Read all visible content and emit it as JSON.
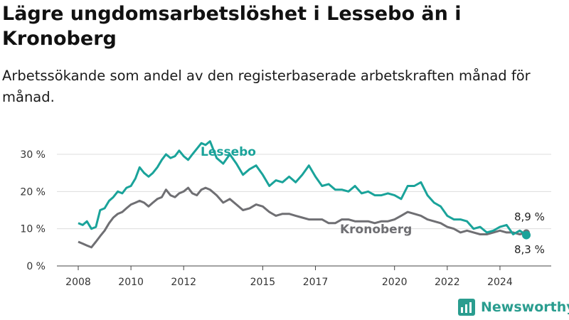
{
  "title": "Lägre ungdomsarbetslöshet i Lessebo än i Kronoberg",
  "subtitle": "Arbetssökande som andel av den registerbaserade arbetskraften månad för månad.",
  "brand": "Newsworthy",
  "colors": {
    "lessebo": "#1aa39a",
    "kronoberg": "#6f6f73",
    "grid": "#dddddd",
    "brand": "#2a9d8f"
  },
  "chart_data": {
    "type": "line",
    "ylim": [
      0,
      30
    ],
    "yticks": [
      0,
      10,
      20,
      30
    ],
    "ytick_labels": [
      "0 %",
      "10 %",
      "20 %",
      "30 %"
    ],
    "xticks": [
      2008,
      2010,
      2012,
      2015,
      2017,
      2020,
      2022,
      2024
    ],
    "xtick_labels": [
      "2008",
      "2010",
      "2012",
      "2015",
      "2017",
      "2020",
      "2022",
      "2024"
    ],
    "end_labels": {
      "lessebo": "8,3 %",
      "kronoberg": "8,9 %"
    },
    "series": [
      {
        "name": "Lessebo",
        "key": "lessebo",
        "x": [
          2008.0,
          2008.17,
          2008.33,
          2008.5,
          2008.67,
          2008.83,
          2009.0,
          2009.17,
          2009.33,
          2009.5,
          2009.67,
          2009.83,
          2010.0,
          2010.17,
          2010.33,
          2010.5,
          2010.67,
          2010.83,
          2011.0,
          2011.17,
          2011.33,
          2011.5,
          2011.67,
          2011.83,
          2012.0,
          2012.17,
          2012.33,
          2012.5,
          2012.67,
          2012.83,
          2013.0,
          2013.25,
          2013.5,
          2013.75,
          2014.0,
          2014.25,
          2014.5,
          2014.75,
          2015.0,
          2015.25,
          2015.5,
          2015.75,
          2016.0,
          2016.25,
          2016.5,
          2016.75,
          2017.0,
          2017.25,
          2017.5,
          2017.75,
          2018.0,
          2018.25,
          2018.5,
          2018.75,
          2019.0,
          2019.25,
          2019.5,
          2019.75,
          2020.0,
          2020.25,
          2020.5,
          2020.75,
          2021.0,
          2021.25,
          2021.5,
          2021.75,
          2022.0,
          2022.25,
          2022.5,
          2022.75,
          2023.0,
          2023.25,
          2023.5,
          2023.75,
          2024.0,
          2024.25,
          2024.5,
          2024.75,
          2025.0
        ],
        "values": [
          11.5,
          11.0,
          12.0,
          10.0,
          10.5,
          15.0,
          15.5,
          17.5,
          18.5,
          20.0,
          19.5,
          21.0,
          21.5,
          23.5,
          26.5,
          25.0,
          24.0,
          25.0,
          26.5,
          28.5,
          30.0,
          29.0,
          29.5,
          31.0,
          29.5,
          28.5,
          30.0,
          31.5,
          33.0,
          32.5,
          33.5,
          29.0,
          27.5,
          30.0,
          27.5,
          24.5,
          26.0,
          27.0,
          24.5,
          21.5,
          23.0,
          22.5,
          24.0,
          22.5,
          24.5,
          27.0,
          24.0,
          21.5,
          22.0,
          20.5,
          20.5,
          20.0,
          21.5,
          19.5,
          20.0,
          19.0,
          19.0,
          19.5,
          19.0,
          18.0,
          21.5,
          21.5,
          22.5,
          19.0,
          17.0,
          16.0,
          13.5,
          12.5,
          12.5,
          12.0,
          10.0,
          10.5,
          9.0,
          9.5,
          10.5,
          11.0,
          8.5,
          9.5,
          8.3
        ]
      },
      {
        "name": "Kronoberg",
        "key": "kronoberg",
        "x": [
          2008.0,
          2008.17,
          2008.33,
          2008.5,
          2008.67,
          2008.83,
          2009.0,
          2009.17,
          2009.33,
          2009.5,
          2009.67,
          2009.83,
          2010.0,
          2010.17,
          2010.33,
          2010.5,
          2010.67,
          2010.83,
          2011.0,
          2011.17,
          2011.33,
          2011.5,
          2011.67,
          2011.83,
          2012.0,
          2012.17,
          2012.33,
          2012.5,
          2012.67,
          2012.83,
          2013.0,
          2013.25,
          2013.5,
          2013.75,
          2014.0,
          2014.25,
          2014.5,
          2014.75,
          2015.0,
          2015.25,
          2015.5,
          2015.75,
          2016.0,
          2016.25,
          2016.5,
          2016.75,
          2017.0,
          2017.25,
          2017.5,
          2017.75,
          2018.0,
          2018.25,
          2018.5,
          2018.75,
          2019.0,
          2019.25,
          2019.5,
          2019.75,
          2020.0,
          2020.25,
          2020.5,
          2020.75,
          2021.0,
          2021.25,
          2021.5,
          2021.75,
          2022.0,
          2022.25,
          2022.5,
          2022.75,
          2023.0,
          2023.25,
          2023.5,
          2023.75,
          2024.0,
          2024.25,
          2024.5,
          2024.75,
          2025.0
        ],
        "values": [
          6.5,
          6.0,
          5.5,
          5.0,
          6.5,
          8.0,
          9.5,
          11.5,
          13.0,
          14.0,
          14.5,
          15.5,
          16.5,
          17.0,
          17.5,
          17.0,
          16.0,
          17.0,
          18.0,
          18.5,
          20.5,
          19.0,
          18.5,
          19.5,
          20.0,
          21.0,
          19.5,
          19.0,
          20.5,
          21.0,
          20.5,
          19.0,
          17.0,
          18.0,
          16.5,
          15.0,
          15.5,
          16.5,
          16.0,
          14.5,
          13.5,
          14.0,
          14.0,
          13.5,
          13.0,
          12.5,
          12.5,
          12.5,
          11.5,
          11.5,
          12.5,
          12.5,
          12.0,
          12.0,
          12.0,
          11.5,
          12.0,
          12.0,
          12.5,
          13.5,
          14.5,
          14.0,
          13.5,
          12.5,
          12.0,
          11.5,
          10.5,
          10.0,
          9.0,
          9.5,
          9.0,
          8.5,
          8.5,
          9.0,
          9.5,
          9.0,
          9.0,
          8.5,
          8.9
        ]
      }
    ]
  }
}
